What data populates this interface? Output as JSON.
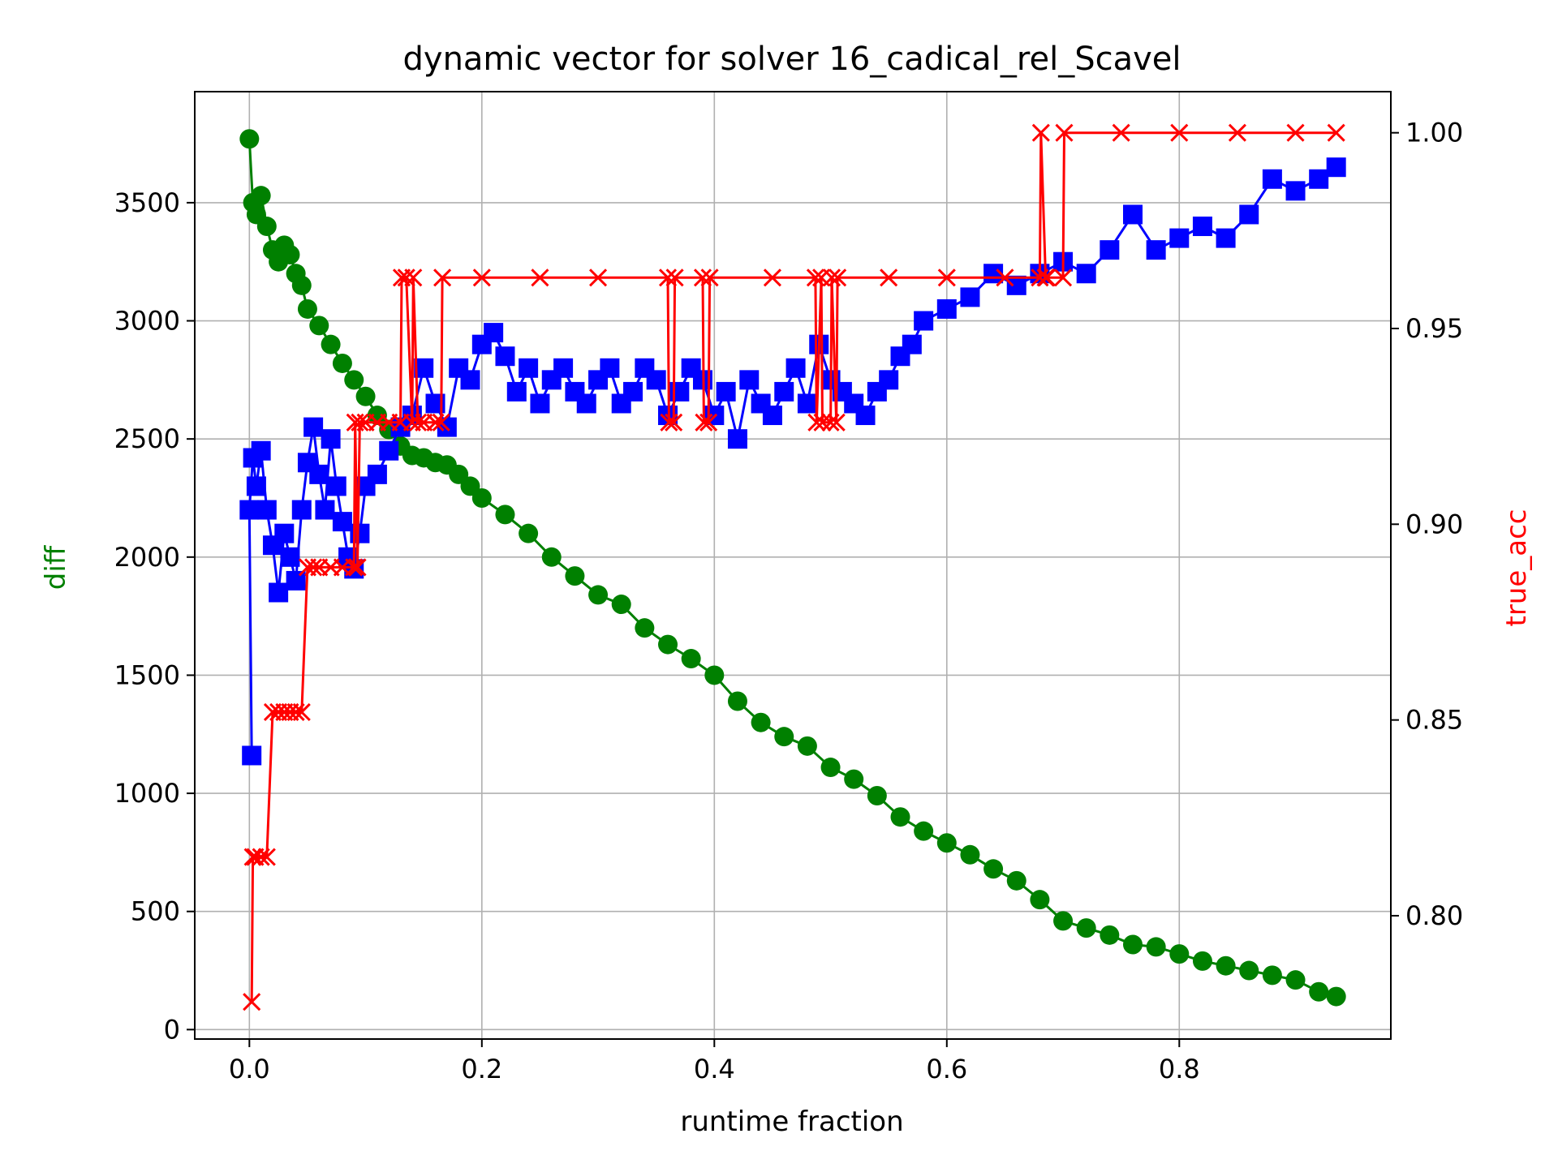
{
  "chart_data": {
    "type": "line",
    "title": "dynamic vector for solver 16_cadical_rel_Scavel",
    "xlabel": "runtime fraction",
    "ylabel_left": "diff",
    "ylabel_right": "true_acc",
    "xlim": [
      -0.047,
      0.982
    ],
    "ylim_left": [
      -40,
      3970
    ],
    "ylim_right": [
      0.7685,
      1.0105
    ],
    "xticks": [
      0.0,
      0.2,
      0.4,
      0.6,
      0.8
    ],
    "xtick_labels": [
      "0.0",
      "0.2",
      "0.4",
      "0.6",
      "0.8"
    ],
    "yticks_left": [
      0,
      500,
      1000,
      1500,
      2000,
      2500,
      3000,
      3500
    ],
    "ytick_labels_left": [
      "0",
      "500",
      "1000",
      "1500",
      "2000",
      "2500",
      "3000",
      "3500"
    ],
    "yticks_right": [
      0.8,
      0.85,
      0.9,
      0.95,
      1.0
    ],
    "ytick_labels_right": [
      "0.80",
      "0.85",
      "0.90",
      "0.95",
      "1.00"
    ],
    "grid": true,
    "legend": "none",
    "colors": {
      "green_series": "#008000",
      "blue_series": "#0000ff",
      "red_series": "#ff0000",
      "left_label": "#008000",
      "right_label": "#ff0000"
    },
    "series": [
      {
        "axis": "left",
        "marker": "circle",
        "color": "#008000",
        "x": [
          0.0,
          0.003,
          0.006,
          0.01,
          0.015,
          0.02,
          0.025,
          0.03,
          0.035,
          0.04,
          0.045,
          0.05,
          0.06,
          0.07,
          0.08,
          0.09,
          0.1,
          0.11,
          0.12,
          0.13,
          0.14,
          0.15,
          0.16,
          0.17,
          0.18,
          0.19,
          0.2,
          0.22,
          0.24,
          0.26,
          0.28,
          0.3,
          0.32,
          0.34,
          0.36,
          0.38,
          0.4,
          0.42,
          0.44,
          0.46,
          0.48,
          0.5,
          0.52,
          0.54,
          0.56,
          0.58,
          0.6,
          0.62,
          0.64,
          0.66,
          0.68,
          0.7,
          0.72,
          0.74,
          0.76,
          0.78,
          0.8,
          0.82,
          0.84,
          0.86,
          0.88,
          0.9,
          0.92,
          0.935
        ],
        "y": [
          3770,
          3500,
          3450,
          3530,
          3400,
          3300,
          3250,
          3320,
          3280,
          3200,
          3150,
          3050,
          2980,
          2900,
          2820,
          2750,
          2680,
          2600,
          2540,
          2470,
          2430,
          2420,
          2400,
          2390,
          2350,
          2300,
          2250,
          2180,
          2100,
          2000,
          1920,
          1840,
          1800,
          1700,
          1630,
          1570,
          1500,
          1390,
          1300,
          1240,
          1200,
          1110,
          1060,
          990,
          900,
          840,
          790,
          740,
          680,
          630,
          550,
          460,
          430,
          400,
          360,
          350,
          320,
          290,
          270,
          250,
          230,
          210,
          160,
          140
        ]
      },
      {
        "axis": "left",
        "marker": "square",
        "color": "#0000ff",
        "x": [
          0.002,
          0.0,
          0.003,
          0.006,
          0.01,
          0.015,
          0.02,
          0.025,
          0.03,
          0.035,
          0.04,
          0.045,
          0.05,
          0.055,
          0.06,
          0.065,
          0.07,
          0.075,
          0.08,
          0.085,
          0.09,
          0.095,
          0.1,
          0.11,
          0.12,
          0.13,
          0.14,
          0.15,
          0.16,
          0.17,
          0.18,
          0.19,
          0.2,
          0.21,
          0.22,
          0.23,
          0.24,
          0.25,
          0.26,
          0.27,
          0.28,
          0.29,
          0.3,
          0.31,
          0.32,
          0.33,
          0.34,
          0.35,
          0.36,
          0.37,
          0.38,
          0.39,
          0.4,
          0.41,
          0.42,
          0.43,
          0.44,
          0.45,
          0.46,
          0.47,
          0.48,
          0.49,
          0.5,
          0.51,
          0.52,
          0.53,
          0.54,
          0.55,
          0.56,
          0.57,
          0.58,
          0.6,
          0.62,
          0.64,
          0.66,
          0.68,
          0.7,
          0.72,
          0.74,
          0.76,
          0.78,
          0.8,
          0.82,
          0.84,
          0.86,
          0.88,
          0.9,
          0.92,
          0.935
        ],
        "y": [
          1160,
          2200,
          2420,
          2300,
          2450,
          2200,
          2050,
          1850,
          2100,
          2000,
          1900,
          2200,
          2400,
          2550,
          2350,
          2200,
          2500,
          2300,
          2150,
          2000,
          1950,
          2100,
          2300,
          2350,
          2450,
          2550,
          2600,
          2800,
          2650,
          2550,
          2800,
          2750,
          2900,
          2950,
          2850,
          2700,
          2800,
          2650,
          2750,
          2800,
          2700,
          2650,
          2750,
          2800,
          2650,
          2700,
          2800,
          2750,
          2600,
          2700,
          2800,
          2750,
          2600,
          2700,
          2500,
          2750,
          2650,
          2600,
          2700,
          2800,
          2650,
          2900,
          2750,
          2700,
          2650,
          2600,
          2700,
          2750,
          2850,
          2900,
          3000,
          3050,
          3100,
          3200,
          3150,
          3200,
          3250,
          3200,
          3300,
          3450,
          3300,
          3350,
          3400,
          3350,
          3450,
          3600,
          3550,
          3600,
          3650
        ]
      },
      {
        "axis": "right",
        "marker": "x",
        "color": "#ff0000",
        "x": [
          0.002,
          0.003,
          0.005,
          0.01,
          0.015,
          0.02,
          0.025,
          0.03,
          0.035,
          0.04,
          0.045,
          0.05,
          0.055,
          0.06,
          0.07,
          0.08,
          0.09,
          0.091,
          0.093,
          0.095,
          0.1,
          0.11,
          0.12,
          0.13,
          0.131,
          0.135,
          0.14,
          0.141,
          0.145,
          0.15,
          0.16,
          0.165,
          0.166,
          0.2,
          0.25,
          0.3,
          0.36,
          0.361,
          0.365,
          0.366,
          0.39,
          0.391,
          0.395,
          0.396,
          0.45,
          0.487,
          0.488,
          0.492,
          0.493,
          0.5,
          0.501,
          0.505,
          0.506,
          0.55,
          0.6,
          0.65,
          0.68,
          0.681,
          0.685,
          0.686,
          0.7,
          0.701,
          0.75,
          0.8,
          0.85,
          0.9,
          0.935
        ],
        "y": [
          0.778,
          0.815,
          0.815,
          0.815,
          0.815,
          0.852,
          0.852,
          0.852,
          0.852,
          0.852,
          0.852,
          0.889,
          0.889,
          0.889,
          0.889,
          0.889,
          0.889,
          0.926,
          0.889,
          0.926,
          0.926,
          0.926,
          0.926,
          0.926,
          0.963,
          0.963,
          0.926,
          0.963,
          0.926,
          0.926,
          0.926,
          0.926,
          0.963,
          0.963,
          0.963,
          0.963,
          0.963,
          0.926,
          0.926,
          0.963,
          0.963,
          0.926,
          0.926,
          0.963,
          0.963,
          0.963,
          0.926,
          0.963,
          0.926,
          0.926,
          0.963,
          0.926,
          0.963,
          0.963,
          0.963,
          0.963,
          0.963,
          1.0,
          0.963,
          0.963,
          0.963,
          1.0,
          1.0,
          1.0,
          1.0,
          1.0,
          1.0
        ]
      }
    ]
  }
}
